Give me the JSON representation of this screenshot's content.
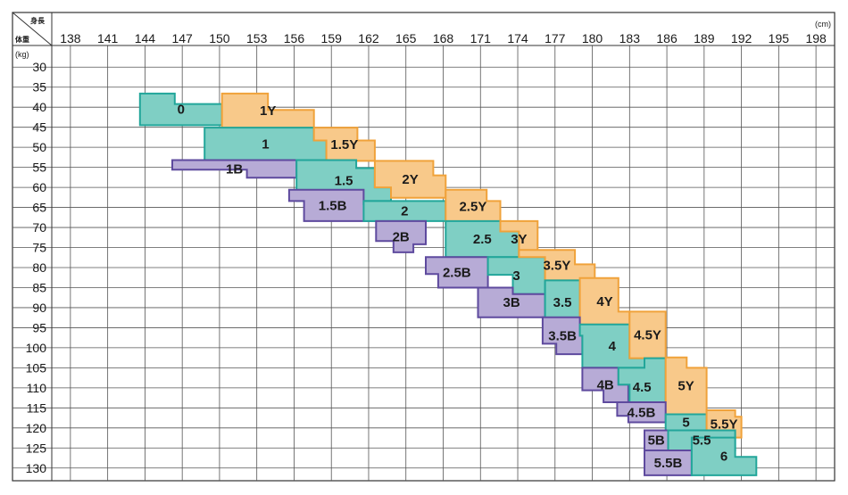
{
  "chart_data": {
    "type": "heatmap",
    "x_header": "身長",
    "y_header": "体重",
    "x_unit": "(cm)",
    "y_unit": "(kg)",
    "x_ticks": [
      138,
      141,
      144,
      147,
      150,
      153,
      156,
      159,
      162,
      165,
      168,
      171,
      174,
      177,
      180,
      183,
      186,
      189,
      192,
      195,
      198
    ],
    "y_ticks": [
      30,
      35,
      40,
      45,
      50,
      55,
      60,
      65,
      70,
      75,
      80,
      85,
      90,
      95,
      100,
      105,
      110,
      115,
      120,
      125,
      130
    ],
    "xlim": [
      136.5,
      199.5
    ],
    "ylim": [
      27.5,
      132.5
    ],
    "colors": {
      "B": "#b7abd6",
      "G": "#7fcfc4",
      "Y": "#f8c98a",
      "B_edge": "#5e4a9e",
      "G_edge": "#22a69a",
      "Y_edge": "#f0a23a"
    },
    "zones": [
      {
        "label": "0",
        "family": "G",
        "outline": [
          [
            143.6,
            36.6
          ],
          [
            146.4,
            36.6
          ],
          [
            146.4,
            39.2
          ],
          [
            150.2,
            39.2
          ],
          [
            150.2,
            44.5
          ],
          [
            143.6,
            44.5
          ]
        ]
      },
      {
        "label": "1Y",
        "family": "Y",
        "outline": [
          [
            150.2,
            36.6
          ],
          [
            153.9,
            36.6
          ],
          [
            153.9,
            40.7
          ],
          [
            157.6,
            40.7
          ],
          [
            157.6,
            45.1
          ],
          [
            150.2,
            45.1
          ]
        ]
      },
      {
        "label": "1",
        "family": "G",
        "outline": [
          [
            148.8,
            45.1
          ],
          [
            157.6,
            45.1
          ],
          [
            157.6,
            48.3
          ],
          [
            158.6,
            48.3
          ],
          [
            158.6,
            53.2
          ],
          [
            148.8,
            53.2
          ]
        ]
      },
      {
        "label": "1.5Y",
        "family": "Y",
        "outline": [
          [
            157.6,
            45.1
          ],
          [
            161.1,
            45.1
          ],
          [
            161.1,
            48.3
          ],
          [
            162.5,
            48.3
          ],
          [
            162.5,
            53.4
          ],
          [
            158.6,
            53.4
          ],
          [
            158.6,
            48.3
          ],
          [
            157.6,
            48.3
          ]
        ]
      },
      {
        "label": "1B",
        "family": "B",
        "outline": [
          [
            146.2,
            53.2
          ],
          [
            156.2,
            53.2
          ],
          [
            156.2,
            57.6
          ],
          [
            152.2,
            57.6
          ],
          [
            152.2,
            55.6
          ],
          [
            146.2,
            55.6
          ]
        ]
      },
      {
        "label": "1.5",
        "family": "G",
        "outline": [
          [
            156.2,
            53.2
          ],
          [
            161.0,
            53.2
          ],
          [
            161.0,
            55.2
          ],
          [
            162.5,
            55.2
          ],
          [
            162.5,
            60.0
          ],
          [
            163.8,
            60.0
          ],
          [
            163.8,
            63.4
          ],
          [
            156.2,
            63.4
          ]
        ]
      },
      {
        "label": "2Y",
        "family": "Y",
        "outline": [
          [
            162.5,
            53.4
          ],
          [
            167.2,
            53.4
          ],
          [
            167.2,
            57.0
          ],
          [
            168.2,
            57.0
          ],
          [
            168.2,
            62.6
          ],
          [
            163.8,
            62.6
          ],
          [
            163.8,
            60.0
          ],
          [
            162.5,
            60.0
          ]
        ]
      },
      {
        "label": "1.5B",
        "family": "B",
        "outline": [
          [
            155.6,
            60.6
          ],
          [
            161.6,
            60.6
          ],
          [
            161.6,
            64.2
          ],
          [
            162.6,
            64.2
          ],
          [
            162.6,
            68.4
          ],
          [
            156.8,
            68.4
          ],
          [
            156.8,
            63.4
          ],
          [
            155.6,
            63.4
          ]
        ]
      },
      {
        "label": "2",
        "family": "G",
        "outline": [
          [
            161.6,
            63.4
          ],
          [
            168.2,
            63.4
          ],
          [
            168.2,
            68.4
          ],
          [
            161.6,
            68.4
          ]
        ]
      },
      {
        "label": "2.5Y",
        "family": "Y",
        "outline": [
          [
            168.2,
            60.6
          ],
          [
            171.5,
            60.6
          ],
          [
            171.5,
            63.4
          ],
          [
            172.6,
            63.4
          ],
          [
            172.6,
            69.0
          ],
          [
            168.2,
            69.0
          ]
        ]
      },
      {
        "label": "2B",
        "family": "B",
        "outline": [
          [
            162.6,
            68.4
          ],
          [
            166.6,
            68.4
          ],
          [
            166.6,
            74.2
          ],
          [
            165.6,
            74.2
          ],
          [
            165.6,
            76.2
          ],
          [
            164.0,
            76.2
          ],
          [
            164.0,
            73.4
          ],
          [
            162.6,
            73.4
          ]
        ]
      },
      {
        "label": "2.5",
        "family": "G",
        "outline": [
          [
            168.2,
            68.4
          ],
          [
            172.6,
            68.4
          ],
          [
            172.6,
            71.0
          ],
          [
            174.1,
            71.0
          ],
          [
            174.1,
            77.4
          ],
          [
            168.2,
            77.4
          ]
        ]
      },
      {
        "label": "3Y",
        "family": "Y",
        "outline": [
          [
            172.6,
            68.4
          ],
          [
            175.6,
            68.4
          ],
          [
            175.6,
            71.8
          ],
          [
            175.6,
            77.4
          ],
          [
            174.1,
            77.4
          ],
          [
            174.1,
            71.0
          ],
          [
            172.6,
            71.0
          ]
        ]
      },
      {
        "label": "2.5B",
        "family": "B",
        "outline": [
          [
            166.6,
            77.4
          ],
          [
            171.6,
            77.4
          ],
          [
            171.6,
            85.0
          ],
          [
            167.6,
            85.0
          ],
          [
            167.6,
            81.6
          ],
          [
            166.6,
            81.6
          ]
        ]
      },
      {
        "label": "3",
        "family": "G",
        "outline": [
          [
            171.6,
            77.4
          ],
          [
            176.2,
            77.4
          ],
          [
            176.2,
            86.6
          ],
          [
            173.6,
            86.6
          ],
          [
            173.6,
            81.8
          ],
          [
            171.6,
            81.8
          ]
        ]
      },
      {
        "label": "3.5Y",
        "family": "Y",
        "outline": [
          [
            174.1,
            75.6
          ],
          [
            178.6,
            75.6
          ],
          [
            178.6,
            79.2
          ],
          [
            180.2,
            79.2
          ],
          [
            180.2,
            83.2
          ],
          [
            176.2,
            83.2
          ],
          [
            176.2,
            77.4
          ],
          [
            174.1,
            77.4
          ]
        ]
      },
      {
        "label": "3B",
        "family": "B",
        "outline": [
          [
            170.8,
            85.0
          ],
          [
            173.6,
            85.0
          ],
          [
            173.6,
            86.6
          ],
          [
            176.2,
            86.6
          ],
          [
            176.2,
            92.4
          ],
          [
            170.8,
            92.4
          ]
        ]
      },
      {
        "label": "3.5",
        "family": "G",
        "outline": [
          [
            176.2,
            83.2
          ],
          [
            179.0,
            83.2
          ],
          [
            179.0,
            94.2
          ],
          [
            176.2,
            94.2
          ]
        ]
      },
      {
        "label": "4Y",
        "family": "Y",
        "outline": [
          [
            179.0,
            82.6
          ],
          [
            182.1,
            82.6
          ],
          [
            182.1,
            91.0
          ],
          [
            183.0,
            91.0
          ],
          [
            183.0,
            94.2
          ],
          [
            179.0,
            94.2
          ]
        ]
      },
      {
        "label": "3.5B",
        "family": "B",
        "outline": [
          [
            176.0,
            92.4
          ],
          [
            179.0,
            92.4
          ],
          [
            179.0,
            97.0
          ],
          [
            179.2,
            97.0
          ],
          [
            179.2,
            101.6
          ],
          [
            177.1,
            101.6
          ],
          [
            177.1,
            99.0
          ],
          [
            176.0,
            99.0
          ]
        ]
      },
      {
        "label": "4",
        "family": "G",
        "outline": [
          [
            179.0,
            94.2
          ],
          [
            183.0,
            94.2
          ],
          [
            183.0,
            102.6
          ],
          [
            184.2,
            102.6
          ],
          [
            184.2,
            105.0
          ],
          [
            179.2,
            105.0
          ],
          [
            179.2,
            97.0
          ],
          [
            179.0,
            97.0
          ]
        ]
      },
      {
        "label": "4.5Y",
        "family": "Y",
        "outline": [
          [
            183.0,
            91.0
          ],
          [
            185.9,
            91.0
          ],
          [
            185.9,
            102.6
          ],
          [
            183.0,
            102.6
          ]
        ]
      },
      {
        "label": "4B",
        "family": "B",
        "outline": [
          [
            179.2,
            105.0
          ],
          [
            182.1,
            105.0
          ],
          [
            182.1,
            109.2
          ],
          [
            182.9,
            109.2
          ],
          [
            182.9,
            113.6
          ],
          [
            180.9,
            113.6
          ],
          [
            180.9,
            110.6
          ],
          [
            179.2,
            110.6
          ]
        ]
      },
      {
        "label": "4.5",
        "family": "G",
        "outline": [
          [
            184.2,
            102.6
          ],
          [
            185.9,
            102.6
          ],
          [
            185.9,
            117.0
          ],
          [
            183.0,
            117.0
          ],
          [
            183.0,
            109.2
          ],
          [
            182.1,
            109.2
          ],
          [
            182.1,
            105.0
          ],
          [
            184.2,
            105.0
          ]
        ]
      },
      {
        "label": "5Y",
        "family": "Y",
        "outline": [
          [
            185.9,
            102.4
          ],
          [
            187.6,
            102.4
          ],
          [
            187.6,
            105.0
          ],
          [
            189.2,
            105.0
          ],
          [
            189.2,
            116.6
          ],
          [
            185.9,
            116.6
          ]
        ]
      },
      {
        "label": "4.5B",
        "family": "B",
        "outline": [
          [
            182.0,
            113.6
          ],
          [
            185.9,
            113.6
          ],
          [
            185.9,
            118.6
          ],
          [
            182.9,
            118.6
          ],
          [
            182.9,
            117.0
          ],
          [
            182.0,
            117.0
          ]
        ]
      },
      {
        "label": "5",
        "family": "G",
        "outline": [
          [
            185.9,
            116.6
          ],
          [
            189.2,
            116.6
          ],
          [
            189.2,
            120.6
          ],
          [
            185.9,
            120.6
          ]
        ]
      },
      {
        "label": "5.5Y",
        "family": "Y",
        "outline": [
          [
            189.2,
            115.6
          ],
          [
            191.5,
            115.6
          ],
          [
            191.5,
            117.2
          ],
          [
            192.0,
            117.2
          ],
          [
            192.0,
            122.4
          ],
          [
            189.2,
            122.4
          ]
        ]
      },
      {
        "label": "5B",
        "family": "B",
        "outline": [
          [
            184.2,
            120.6
          ],
          [
            186.1,
            120.6
          ],
          [
            186.1,
            125.6
          ],
          [
            184.2,
            125.6
          ]
        ]
      },
      {
        "label": "5.5",
        "family": "G",
        "outline": [
          [
            186.1,
            120.6
          ],
          [
            191.5,
            120.6
          ],
          [
            191.5,
            125.6
          ],
          [
            186.1,
            125.6
          ]
        ]
      },
      {
        "label": "5.5B",
        "family": "B",
        "outline": [
          [
            184.2,
            125.6
          ],
          [
            188.0,
            125.6
          ],
          [
            188.0,
            131.8
          ],
          [
            184.2,
            131.8
          ]
        ]
      },
      {
        "label": "6",
        "family": "G",
        "outline": [
          [
            188.0,
            122.4
          ],
          [
            191.5,
            122.4
          ],
          [
            191.5,
            127.2
          ],
          [
            193.2,
            127.2
          ],
          [
            193.2,
            131.8
          ],
          [
            188.0,
            131.8
          ]
        ]
      }
    ]
  }
}
